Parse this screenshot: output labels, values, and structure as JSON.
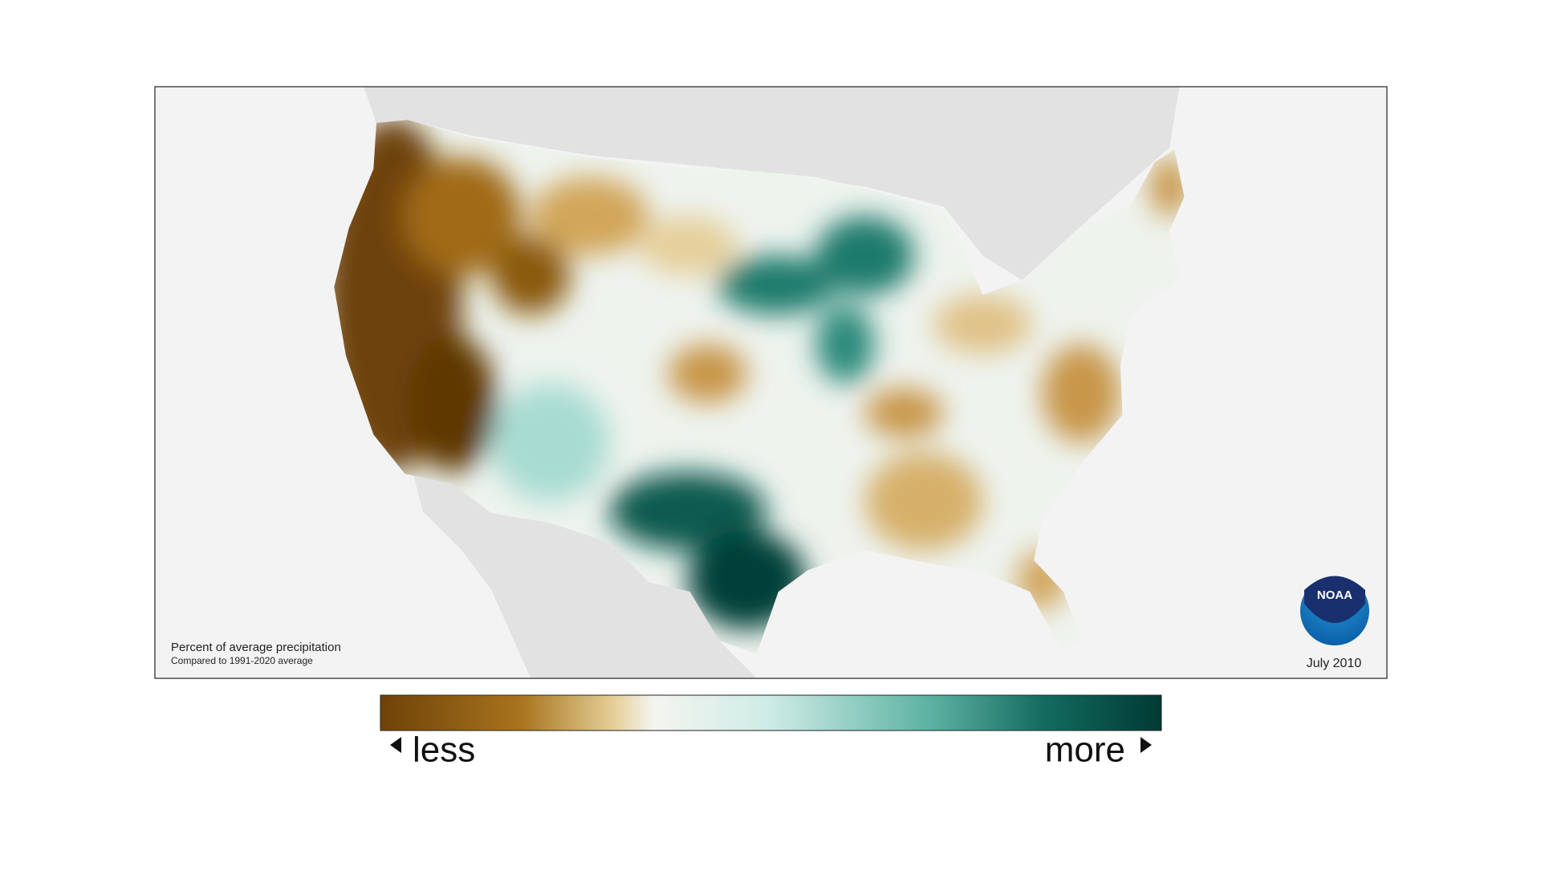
{
  "map": {
    "caption_title": "Percent of average precipitation",
    "caption_subtitle": "Compared to 1991-2020 average",
    "date": "July 2010",
    "logo_text": "NOAA"
  },
  "legend": {
    "low_label": "less",
    "high_label": "more"
  }
}
